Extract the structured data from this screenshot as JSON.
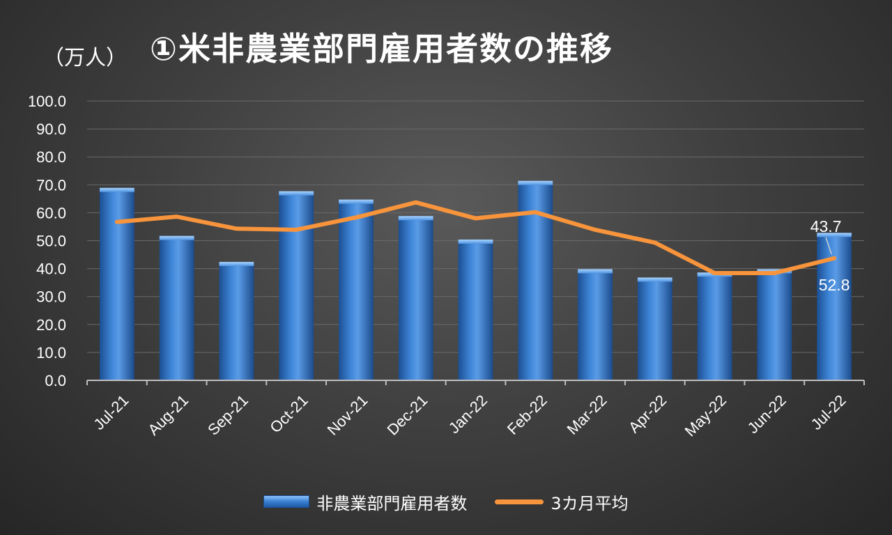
{
  "header": {
    "unit_label": "（万人）",
    "title": "①米非農業部門雇用者数の推移"
  },
  "chart_data": {
    "type": "bar",
    "categories": [
      "Jul-21",
      "Aug-21",
      "Sep-21",
      "Oct-21",
      "Nov-21",
      "Dec-21",
      "Jan-22",
      "Feb-22",
      "Mar-22",
      "Apr-22",
      "May-22",
      "Jun-22",
      "Jul-22"
    ],
    "series": [
      {
        "name": "非農業部門雇用者数",
        "type": "bar",
        "color": "#3a7fd0",
        "values": [
          68.9,
          51.7,
          42.4,
          67.7,
          64.7,
          58.8,
          50.4,
          71.4,
          39.8,
          36.8,
          38.6,
          39.8,
          52.8
        ]
      },
      {
        "name": "3カ月平均",
        "type": "line",
        "color": "#f7943c",
        "values": [
          56.7,
          58.6,
          54.3,
          53.9,
          58.3,
          63.7,
          58.0,
          60.2,
          53.9,
          49.3,
          38.4,
          38.4,
          43.7
        ]
      }
    ],
    "y_ticks": [
      "0.0",
      "10.0",
      "20.0",
      "30.0",
      "40.0",
      "50.0",
      "60.0",
      "70.0",
      "80.0",
      "90.0",
      "100.0"
    ],
    "ylim": [
      0,
      100
    ],
    "grid": true,
    "legend": "bottom-center",
    "annotations": {
      "bar_last_label": "52.8",
      "line_last_label": "43.7"
    }
  }
}
